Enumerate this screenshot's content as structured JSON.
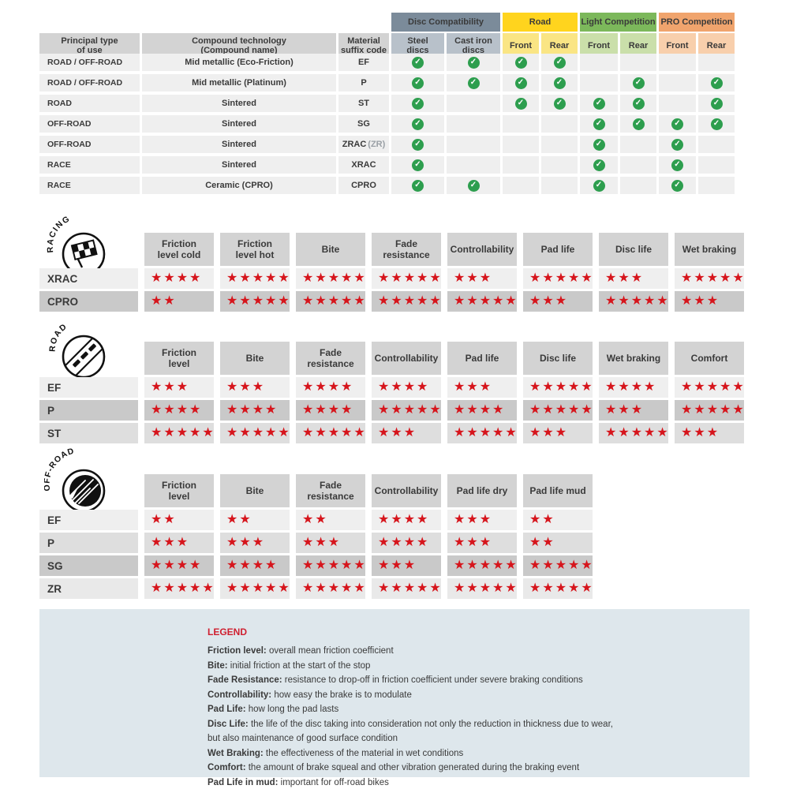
{
  "colors": {
    "star_red": "#d6151c",
    "check_green": "#2d9e4e",
    "text_dark": "#3a3a3a",
    "disc_group_bg": "#7b8b9a",
    "disc_sub_bg": "#b8c1ca",
    "road_group_bg": "#ffd41e",
    "road_sub_bg": "#fae584",
    "light_group_bg": "#7cb85b",
    "light_sub_bg": "#cadfaa",
    "pro_group_bg": "#f0a46d",
    "pro_sub_bg": "#f8cfac",
    "row_light_bg": "#efefef",
    "header_gray_bg": "#d3d3d3",
    "legend_bg": "#dee7ec",
    "legend_title_red": "#cf1f2f"
  },
  "compatibility_table": {
    "group_headers": [
      {
        "label": "Disc Compatibility",
        "key": "disc"
      },
      {
        "label": "Road",
        "key": "road"
      },
      {
        "label": "Light Competition",
        "key": "light"
      },
      {
        "label": "PRO Competition",
        "key": "pro"
      }
    ],
    "column_headers": [
      "Principal type\nof use",
      "Compound technology\n(Compound name)",
      "Material\nsuffix code",
      "Steel\ndiscs",
      "Cast iron\ndiscs",
      "Front",
      "Rear",
      "Front",
      "Rear",
      "Front",
      "Rear"
    ],
    "rows": [
      {
        "use": "ROAD / OFF-ROAD",
        "compound": "Mid metallic (Eco-Friction)",
        "code": "EF",
        "code_suffix": "",
        "checks": [
          1,
          1,
          1,
          1,
          0,
          0,
          0,
          0
        ]
      },
      {
        "use": "ROAD / OFF-ROAD",
        "compound": "Mid metallic (Platinum)",
        "code": "P",
        "code_suffix": "",
        "checks": [
          1,
          1,
          1,
          1,
          0,
          1,
          0,
          1
        ]
      },
      {
        "use": "ROAD",
        "compound": "Sintered",
        "code": "ST",
        "code_suffix": "",
        "checks": [
          1,
          0,
          1,
          1,
          1,
          1,
          0,
          1
        ]
      },
      {
        "use": "OFF-ROAD",
        "compound": "Sintered",
        "code": "SG",
        "code_suffix": "",
        "checks": [
          1,
          0,
          0,
          0,
          1,
          1,
          1,
          1
        ]
      },
      {
        "use": "OFF-ROAD",
        "compound": "Sintered",
        "code": "ZRAC",
        "code_suffix": "(ZR)",
        "checks": [
          1,
          0,
          0,
          0,
          1,
          0,
          1,
          0
        ]
      },
      {
        "use": "RACE",
        "compound": "Sintered",
        "code": "XRAC",
        "code_suffix": "",
        "checks": [
          1,
          0,
          0,
          0,
          1,
          0,
          1,
          0
        ]
      },
      {
        "use": "RACE",
        "compound": "Ceramic (CPRO)",
        "code": "CPRO",
        "code_suffix": "",
        "checks": [
          1,
          1,
          0,
          0,
          1,
          0,
          1,
          0
        ]
      }
    ]
  },
  "rating_sections": [
    {
      "id": "racing",
      "arc_label": "RACING",
      "icon": "checkered-flag",
      "columns": [
        "Friction\nlevel cold",
        "Friction\nlevel hot",
        "Bite",
        "Fade\nresistance",
        "Controllability",
        "Pad life",
        "Disc life",
        "Wet braking"
      ],
      "rows": [
        {
          "code": "XRAC",
          "bg": "#efefef",
          "ratings": [
            4,
            5,
            5,
            5,
            3,
            5,
            3,
            5
          ]
        },
        {
          "code": "CPRO",
          "bg": "#c9c9c9",
          "ratings": [
            2,
            5,
            5,
            5,
            5,
            3,
            5,
            3
          ]
        }
      ]
    },
    {
      "id": "road",
      "arc_label": "ROAD",
      "icon": "road",
      "columns": [
        "Friction\nlevel",
        "Bite",
        "Fade\nresistance",
        "Controllability",
        "Pad life",
        "Disc life",
        "Wet braking",
        "Comfort"
      ],
      "rows": [
        {
          "code": "EF",
          "bg": "#efefef",
          "ratings": [
            3,
            3,
            4,
            4,
            3,
            5,
            4,
            5
          ]
        },
        {
          "code": "P",
          "bg": "#c9c9c9",
          "ratings": [
            4,
            4,
            4,
            5,
            4,
            5,
            3,
            5
          ]
        },
        {
          "code": "ST",
          "bg": "#dedede",
          "ratings": [
            5,
            5,
            5,
            3,
            5,
            3,
            5,
            3
          ]
        }
      ]
    },
    {
      "id": "offroad",
      "arc_label": "OFF-ROAD",
      "icon": "mud-splat",
      "columns": [
        "Friction\nlevel",
        "Bite",
        "Fade\nresistance",
        "Controllability",
        "Pad life dry",
        "Pad life mud"
      ],
      "rows": [
        {
          "code": "EF",
          "bg": "#efefef",
          "ratings": [
            2,
            2,
            2,
            4,
            3,
            2
          ]
        },
        {
          "code": "P",
          "bg": "#dedede",
          "ratings": [
            3,
            3,
            3,
            4,
            3,
            2
          ]
        },
        {
          "code": "SG",
          "bg": "#c9c9c9",
          "ratings": [
            4,
            4,
            5,
            3,
            5,
            5
          ]
        },
        {
          "code": "ZR",
          "bg": "#e9e9e9",
          "ratings": [
            5,
            5,
            5,
            5,
            5,
            5
          ]
        }
      ]
    }
  ],
  "legend": {
    "title": "LEGEND",
    "entries": [
      {
        "term": "Friction level",
        "desc": "overall mean friction coefficient"
      },
      {
        "term": "Bite",
        "desc": "initial friction at the start of the stop"
      },
      {
        "term": "Fade Resistance",
        "desc": "resistance to drop-off in friction coefficient under severe braking conditions"
      },
      {
        "term": "Controllability",
        "desc": "how easy the brake is to modulate"
      },
      {
        "term": "Pad Life",
        "desc": "how long the pad lasts"
      },
      {
        "term": "Disc Life",
        "desc": "the life of the disc taking into consideration not only the reduction in thickness due to wear,"
      },
      {
        "term": "",
        "desc": "but also maintenance of good surface condition"
      },
      {
        "term": "Wet Braking",
        "desc": "the effectiveness of the material in wet conditions"
      },
      {
        "term": "Comfort",
        "desc": "the amount of brake squeal and other vibration generated during the braking event"
      },
      {
        "term": "Pad Life in mud",
        "desc": "important for off-road bikes"
      }
    ]
  }
}
